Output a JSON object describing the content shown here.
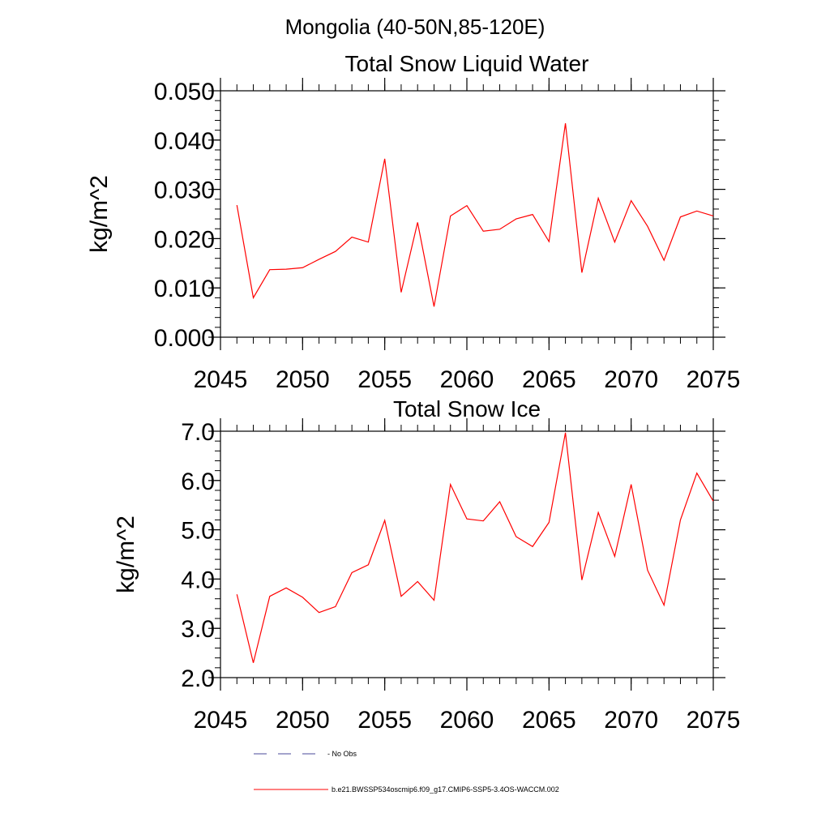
{
  "main_title": "Mongolia (40-50N,85-120E)",
  "colors": {
    "series_line": "#ff0000",
    "obs_line": "#4a4a9a",
    "axis": "#000000",
    "background": "#ffffff"
  },
  "legend": {
    "entries": [
      {
        "label": "No Obs",
        "style": "dashed",
        "color": "#4a4a9a"
      },
      {
        "label": "b.e21.BWSSP534oscmip6.f09_g17.CMIP6-SSP5-3.4OS-WACCM.002",
        "style": "solid",
        "color": "#ff0000"
      }
    ]
  },
  "chart_data": [
    {
      "type": "line",
      "title": "Total Snow Liquid Water",
      "xlabel": "",
      "ylabel": "kg/m^2",
      "xlim": [
        2045,
        2075
      ],
      "ylim": [
        0.0,
        0.05
      ],
      "xticks": [
        2045,
        2050,
        2055,
        2060,
        2065,
        2070,
        2075
      ],
      "xtick_labels": [
        "2045",
        "2050",
        "2055",
        "2060",
        "2065",
        "2070",
        "2075"
      ],
      "yticks": [
        0.0,
        0.01,
        0.02,
        0.03,
        0.04,
        0.05
      ],
      "ytick_labels": [
        "0.000",
        "0.010",
        "0.020",
        "0.030",
        "0.040",
        "0.050"
      ],
      "y_minor_step": 0.002,
      "x_minor_step": 1,
      "grid": false,
      "x": [
        2046,
        2047,
        2048,
        2049,
        2050,
        2051,
        2052,
        2053,
        2054,
        2055,
        2056,
        2057,
        2058,
        2059,
        2060,
        2061,
        2062,
        2063,
        2064,
        2065,
        2066,
        2067,
        2068,
        2069,
        2070,
        2071,
        2072,
        2073,
        2074,
        2075
      ],
      "series": [
        {
          "name": "b.e21.BWSSP534oscmip6.f09_g17.CMIP6-SSP5-3.4OS-WACCM.002",
          "values": [
            0.0268,
            0.008,
            0.0137,
            0.0138,
            0.0141,
            0.0158,
            0.0174,
            0.0203,
            0.0193,
            0.0362,
            0.0091,
            0.0233,
            0.0062,
            0.0246,
            0.0267,
            0.0215,
            0.0219,
            0.024,
            0.0249,
            0.0194,
            0.0434,
            0.0131,
            0.0282,
            0.0193,
            0.0277,
            0.0225,
            0.0156,
            0.0244,
            0.0256,
            0.0246
          ]
        }
      ]
    },
    {
      "type": "line",
      "title": "Total Snow Ice",
      "xlabel": "",
      "ylabel": "kg/m^2",
      "xlim": [
        2045,
        2075
      ],
      "ylim": [
        2.0,
        7.0
      ],
      "xticks": [
        2045,
        2050,
        2055,
        2060,
        2065,
        2070,
        2075
      ],
      "xtick_labels": [
        "2045",
        "2050",
        "2055",
        "2060",
        "2065",
        "2070",
        "2075"
      ],
      "yticks": [
        2.0,
        3.0,
        4.0,
        5.0,
        6.0,
        7.0
      ],
      "ytick_labels": [
        "2.0",
        "3.0",
        "4.0",
        "5.0",
        "6.0",
        "7.0"
      ],
      "y_minor_step": 0.2,
      "x_minor_step": 1,
      "grid": false,
      "x": [
        2046,
        2047,
        2048,
        2049,
        2050,
        2051,
        2052,
        2053,
        2054,
        2055,
        2056,
        2057,
        2058,
        2059,
        2060,
        2061,
        2062,
        2063,
        2064,
        2065,
        2066,
        2067,
        2068,
        2069,
        2070,
        2071,
        2072,
        2073,
        2074,
        2075
      ],
      "series": [
        {
          "name": "b.e21.BWSSP534oscmip6.f09_g17.CMIP6-SSP5-3.4OS-WACCM.002",
          "values": [
            3.69,
            2.3,
            3.65,
            3.82,
            3.63,
            3.32,
            3.44,
            4.13,
            4.29,
            5.19,
            3.65,
            3.95,
            3.57,
            5.92,
            5.22,
            5.18,
            5.57,
            4.86,
            4.66,
            5.15,
            6.97,
            3.98,
            5.35,
            4.46,
            5.92,
            4.18,
            3.47,
            5.2,
            6.15,
            5.58
          ]
        }
      ]
    }
  ]
}
